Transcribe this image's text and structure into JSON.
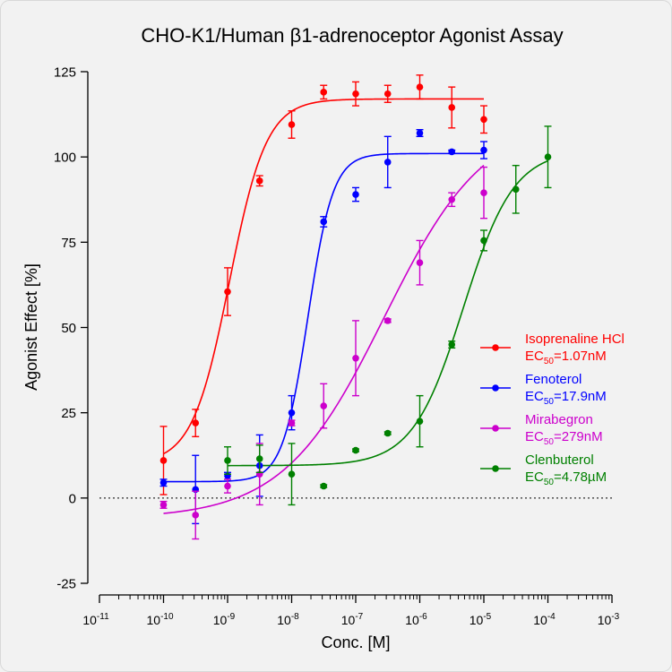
{
  "chart_data": {
    "type": "scatter",
    "title": "CHO-K1/Human β1-adrenoceptor Agonist Assay",
    "xlabel": "Conc. [M]",
    "ylabel": "Agonist Effect [%]",
    "x_scale": "log",
    "xlim": [
      1e-11,
      0.001
    ],
    "ylim": [
      -25,
      125
    ],
    "x_tick_base": "10",
    "x_tick_exponents": [
      "-11",
      "-10",
      "-9",
      "-8",
      "-7",
      "-6",
      "-5",
      "-4",
      "-3"
    ],
    "y_ticks": [
      "-25",
      "0",
      "25",
      "50",
      "75",
      "100",
      "125"
    ],
    "zero_line": "dotted",
    "grid": false,
    "legend_position": "right",
    "series": [
      {
        "name": "Isoprenaline HCl",
        "ec50_prefix": "EC",
        "ec50_sub": "50",
        "ec50_value": "=1.07nM",
        "ec50": 1.07e-09,
        "color": "#ff0000",
        "bottom": 10,
        "top": 117,
        "hill": 1.5,
        "fit_range": [
          1e-10,
          1e-05
        ],
        "points": [
          {
            "x": 1e-10,
            "y": 11,
            "err": 10
          },
          {
            "x": 3.16e-10,
            "y": 22,
            "err": 4
          },
          {
            "x": 1e-09,
            "y": 60.5,
            "err": 7
          },
          {
            "x": 3.16e-09,
            "y": 93,
            "err": 1.5
          },
          {
            "x": 1e-08,
            "y": 109.5,
            "err": 4
          },
          {
            "x": 3.16e-08,
            "y": 119,
            "err": 2
          },
          {
            "x": 1e-07,
            "y": 118.5,
            "err": 3.5
          },
          {
            "x": 3.16e-07,
            "y": 118.5,
            "err": 2.5
          },
          {
            "x": 1e-06,
            "y": 120.5,
            "err": 3.5
          },
          {
            "x": 3.16e-06,
            "y": 114.5,
            "err": 6
          },
          {
            "x": 1e-05,
            "y": 111,
            "err": 4
          }
        ]
      },
      {
        "name": "Fenoterol",
        "ec50_prefix": "EC",
        "ec50_sub": "50",
        "ec50_value": "=17.9nM",
        "ec50": 1.79e-08,
        "color": "#0000ff",
        "bottom": 4.8,
        "top": 101,
        "hill": 2.2,
        "fit_range": [
          1e-10,
          1e-05
        ],
        "points": [
          {
            "x": 1e-10,
            "y": 4.5,
            "err": 1
          },
          {
            "x": 3.16e-10,
            "y": 2.5,
            "err": 10
          },
          {
            "x": 1e-09,
            "y": 6.5,
            "err": 1
          },
          {
            "x": 3.16e-09,
            "y": 9.5,
            "err": 9
          },
          {
            "x": 1e-08,
            "y": 25,
            "err": 5
          },
          {
            "x": 3.16e-08,
            "y": 81,
            "err": 1.5
          },
          {
            "x": 1e-07,
            "y": 89,
            "err": 2
          },
          {
            "x": 3.16e-07,
            "y": 98.5,
            "err": 7.5
          },
          {
            "x": 1e-06,
            "y": 107,
            "err": 1
          },
          {
            "x": 3.16e-06,
            "y": 101.5,
            "err": 0.5
          },
          {
            "x": 1e-05,
            "y": 102,
            "err": 2.5
          }
        ]
      },
      {
        "name": "Mirabegron",
        "ec50_prefix": "EC",
        "ec50_sub": "50",
        "ec50_value": "=279nM",
        "ec50": 2.79e-07,
        "color": "#cc00cc",
        "bottom": -6,
        "top": 112,
        "hill": 0.55,
        "fit_range": [
          1e-10,
          1e-05
        ],
        "points": [
          {
            "x": 1e-10,
            "y": -2,
            "err": 1
          },
          {
            "x": 3.16e-10,
            "y": -5,
            "err": 7
          },
          {
            "x": 1e-09,
            "y": 3.5,
            "err": 2
          },
          {
            "x": 3.16e-09,
            "y": 7,
            "err": 9
          },
          {
            "x": 1e-08,
            "y": 22,
            "err": 0.8
          },
          {
            "x": 3.16e-08,
            "y": 27,
            "err": 6.5
          },
          {
            "x": 1e-07,
            "y": 41,
            "err": 11
          },
          {
            "x": 3.16e-07,
            "y": 52,
            "err": 0.5
          },
          {
            "x": 1e-06,
            "y": 69,
            "err": 6.5
          },
          {
            "x": 3.16e-06,
            "y": 87.5,
            "err": 2
          },
          {
            "x": 1e-05,
            "y": 89.5,
            "err": 7.5
          }
        ]
      },
      {
        "name": "Clenbuterol",
        "ec50_prefix": "EC",
        "ec50_sub": "50",
        "ec50_value": "=4.78µM",
        "ec50": 4.78e-06,
        "color": "#008000",
        "bottom": 9.5,
        "top": 102,
        "hill": 1.1,
        "fit_range": [
          1e-09,
          0.0001
        ],
        "points": [
          {
            "x": 1e-09,
            "y": 11,
            "err": 4
          },
          {
            "x": 3.16e-09,
            "y": 11.5,
            "err": 4
          },
          {
            "x": 1e-08,
            "y": 7,
            "err": 9
          },
          {
            "x": 3.16e-08,
            "y": 3.5,
            "err": 0.4
          },
          {
            "x": 1e-07,
            "y": 14,
            "err": 0.4
          },
          {
            "x": 3.16e-07,
            "y": 19,
            "err": 0.4
          },
          {
            "x": 1e-06,
            "y": 22.5,
            "err": 7.5
          },
          {
            "x": 3.16e-06,
            "y": 45,
            "err": 1
          },
          {
            "x": 1e-05,
            "y": 75.5,
            "err": 3
          },
          {
            "x": 3.16e-05,
            "y": 90.5,
            "err": 7
          },
          {
            "x": 0.0001,
            "y": 100,
            "err": 9
          }
        ]
      }
    ]
  }
}
